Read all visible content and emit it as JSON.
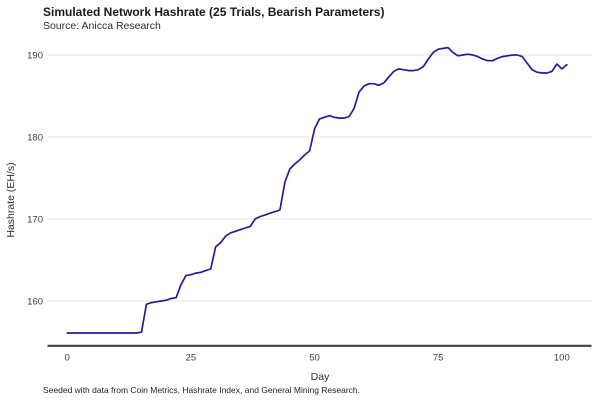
{
  "header": {
    "title": "Simulated Network Hashrate (25 Trials, Bearish Parameters)",
    "subtitle": "Source: Anicca Research"
  },
  "axes": {
    "x_label": "Day",
    "y_label": "Hashrate (EH/s)"
  },
  "footer": {
    "note": "Seeded with data from Coin Metrics, Hashrate Index, and General Mining Research."
  },
  "colors": {
    "line": "#241e96",
    "grid": "#e4e4e4",
    "axis_line": "#404040",
    "tick_label": "#3d3d3d",
    "title_text": "#1a1a1a"
  },
  "chart_data": {
    "type": "line",
    "title": "Simulated Network Hashrate (25 Trials, Bearish Parameters)",
    "subtitle": "Source: Anicca Research",
    "xlabel": "Day",
    "ylabel": "Hashrate (EH/s)",
    "xlim": [
      -4,
      106
    ],
    "ylim": [
      154.4,
      191.9
    ],
    "xticks": [
      0,
      25,
      50,
      75,
      100
    ],
    "yticks": [
      160,
      170,
      180,
      190
    ],
    "grid": "horizontal-only",
    "legend_position": "none",
    "series": [
      {
        "name": "Simulated network hashrate (EH/s)",
        "x": [
          0,
          1,
          2,
          3,
          4,
          5,
          6,
          7,
          8,
          9,
          10,
          11,
          12,
          13,
          14,
          15,
          16,
          17,
          18,
          19,
          20,
          21,
          22,
          23,
          24,
          25,
          26,
          27,
          28,
          29,
          30,
          31,
          32,
          33,
          34,
          35,
          36,
          37,
          38,
          39,
          40,
          41,
          42,
          43,
          44,
          45,
          46,
          47,
          48,
          49,
          50,
          51,
          52,
          53,
          54,
          55,
          56,
          57,
          58,
          59,
          60,
          61,
          62,
          63,
          64,
          65,
          66,
          67,
          68,
          69,
          70,
          71,
          72,
          73,
          74,
          75,
          76,
          77,
          78,
          79,
          80,
          81,
          82,
          83,
          84,
          85,
          86,
          87,
          88,
          89,
          90,
          91,
          92,
          93,
          94,
          95,
          96,
          97,
          98,
          99,
          100,
          101
        ],
        "y": [
          156.1,
          156.1,
          156.1,
          156.1,
          156.1,
          156.1,
          156.1,
          156.1,
          156.1,
          156.1,
          156.1,
          156.1,
          156.1,
          156.1,
          156.1,
          156.2,
          159.6,
          159.8,
          159.9,
          160.0,
          160.1,
          160.3,
          160.4,
          162.0,
          163.1,
          163.2,
          163.4,
          163.5,
          163.7,
          163.9,
          166.6,
          167.1,
          167.9,
          168.3,
          168.5,
          168.7,
          168.9,
          169.1,
          170.0,
          170.3,
          170.5,
          170.7,
          170.9,
          171.1,
          174.5,
          176.1,
          176.7,
          177.2,
          177.8,
          178.3,
          181.0,
          182.2,
          182.4,
          182.6,
          182.4,
          182.3,
          182.3,
          182.5,
          183.5,
          185.5,
          186.2,
          186.5,
          186.5,
          186.3,
          186.6,
          187.3,
          188.0,
          188.3,
          188.2,
          188.1,
          188.1,
          188.2,
          188.6,
          189.5,
          190.3,
          190.7,
          190.8,
          190.9,
          190.3,
          189.9,
          190.0,
          190.1,
          190.0,
          189.8,
          189.5,
          189.3,
          189.3,
          189.6,
          189.8,
          189.9,
          190.0,
          190.0,
          189.8,
          189.0,
          188.2,
          187.9,
          187.8,
          187.8,
          188.0,
          188.9,
          188.3,
          188.8
        ]
      }
    ]
  }
}
